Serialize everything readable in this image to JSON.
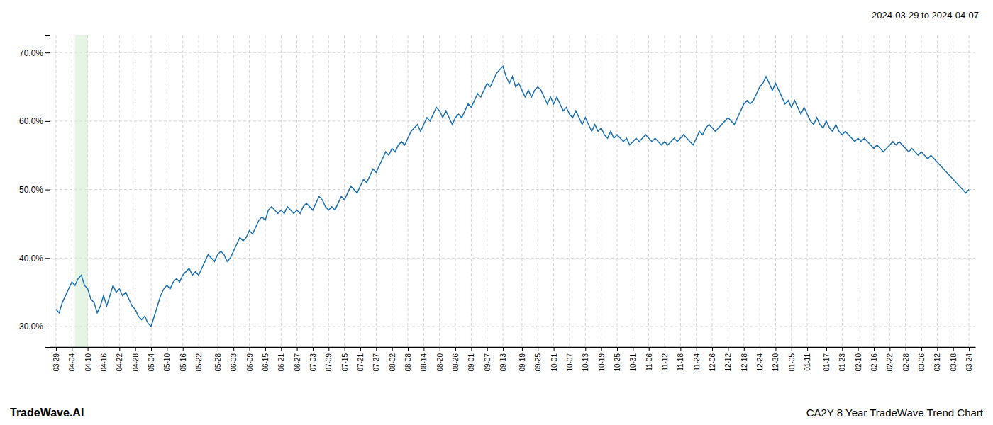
{
  "chart_data": {
    "type": "line",
    "title": "CA2Y 8 Year TradeWave Trend Chart",
    "subtitle": "2024-03-29 to 2024-04-07",
    "annotations": [
      "TradeWave.AI"
    ],
    "color": "#1a6faf",
    "grid": true,
    "highlight": {
      "start": 6,
      "end": 10,
      "color": "#d6ecd6"
    },
    "ylim": [
      27.0,
      72.5
    ],
    "yticks": [
      {
        "value": 30.0,
        "label": "30.0%"
      },
      {
        "value": 40.0,
        "label": "40.0%"
      },
      {
        "value": 50.0,
        "label": "50.0%"
      },
      {
        "value": 60.0,
        "label": "60.0%"
      },
      {
        "value": 70.0,
        "label": "70.0%"
      }
    ],
    "categories": [
      "03-29",
      null,
      null,
      null,
      null,
      "04-04",
      null,
      null,
      null,
      null,
      "04-10",
      null,
      null,
      null,
      null,
      "04-16",
      null,
      null,
      null,
      null,
      "04-22",
      null,
      null,
      null,
      null,
      "04-28",
      null,
      null,
      null,
      null,
      "05-04",
      null,
      null,
      null,
      null,
      "05-10",
      null,
      null,
      null,
      null,
      "05-16",
      null,
      null,
      null,
      null,
      "05-22",
      null,
      null,
      null,
      null,
      null,
      "05-28",
      null,
      null,
      null,
      null,
      "06-03",
      null,
      null,
      null,
      null,
      "06-09",
      null,
      null,
      null,
      null,
      "06-15",
      null,
      null,
      null,
      null,
      "06-21",
      null,
      null,
      null,
      null,
      "06-27",
      null,
      null,
      null,
      null,
      "07-03",
      null,
      null,
      null,
      null,
      "07-09",
      null,
      null,
      null,
      null,
      "07-15",
      null,
      null,
      null,
      null,
      "07-21",
      null,
      null,
      null,
      null,
      "07-27",
      null,
      null,
      null,
      null,
      "08-02",
      null,
      null,
      null,
      null,
      "08-08",
      null,
      null,
      null,
      null,
      "08-14",
      null,
      null,
      null,
      null,
      "08-20",
      null,
      null,
      null,
      null,
      "08-26",
      null,
      null,
      null,
      null,
      "09-01",
      null,
      null,
      null,
      null,
      "09-07",
      null,
      null,
      null,
      null,
      "09-13",
      null,
      null,
      null,
      null,
      null,
      "09-19",
      null,
      null,
      null,
      null,
      "09-25",
      null,
      null,
      null,
      null,
      "10-01",
      null,
      null,
      null,
      null,
      "10-07",
      null,
      null,
      null,
      null,
      "10-13",
      null,
      null,
      null,
      null,
      "10-19",
      null,
      null,
      null,
      null,
      "10-25",
      null,
      null,
      null,
      null,
      "10-31",
      null,
      null,
      null,
      null,
      "11-06",
      null,
      null,
      null,
      null,
      "11-12",
      null,
      null,
      null,
      null,
      "11-18",
      null,
      null,
      null,
      null,
      "11-24",
      null,
      null,
      null,
      null,
      "12-06",
      null,
      null,
      null,
      null,
      "12-12",
      null,
      null,
      null,
      null,
      "12-18",
      null,
      null,
      null,
      null,
      "12-24",
      null,
      null,
      null,
      null,
      "12-30",
      null,
      null,
      null,
      null,
      "01-05",
      null,
      null,
      null,
      null,
      "01-11",
      null,
      null,
      null,
      null,
      null,
      "01-17",
      null,
      null,
      null,
      null,
      "01-23",
      null,
      null,
      null,
      null,
      "02-10",
      null,
      null,
      null,
      null,
      "02-16",
      null,
      null,
      null,
      null,
      "02-22",
      null,
      null,
      null,
      null,
      "02-28",
      null,
      null,
      null,
      null,
      "03-06",
      null,
      null,
      null,
      null,
      "03-12",
      null,
      null,
      null,
      null,
      "03-18",
      null,
      null,
      null,
      null,
      "03-24"
    ],
    "values": [
      32.5,
      32.0,
      33.5,
      34.5,
      35.5,
      36.5,
      36.0,
      37.0,
      37.5,
      36.0,
      35.5,
      34.0,
      33.5,
      32.0,
      33.0,
      34.5,
      33.0,
      34.5,
      36.0,
      35.0,
      35.5,
      34.5,
      35.0,
      34.0,
      33.0,
      32.5,
      31.5,
      31.0,
      31.5,
      30.5,
      30.0,
      31.5,
      33.0,
      34.5,
      35.5,
      36.0,
      35.5,
      36.5,
      37.0,
      36.5,
      37.5,
      38.0,
      38.5,
      37.5,
      38.0,
      37.5,
      38.5,
      39.5,
      40.5,
      40.0,
      39.5,
      40.5,
      41.0,
      40.5,
      39.5,
      40.0,
      41.0,
      42.0,
      43.0,
      42.5,
      43.0,
      44.0,
      43.5,
      44.5,
      45.5,
      46.0,
      45.5,
      47.0,
      47.5,
      47.0,
      46.5,
      47.0,
      46.5,
      47.5,
      47.0,
      46.5,
      47.0,
      46.5,
      47.5,
      48.0,
      47.5,
      47.0,
      48.0,
      49.0,
      48.5,
      47.5,
      47.0,
      47.5,
      47.0,
      48.0,
      49.0,
      48.5,
      49.5,
      50.5,
      50.0,
      49.5,
      50.5,
      51.5,
      51.0,
      52.0,
      53.0,
      52.5,
      53.5,
      54.5,
      55.5,
      55.0,
      56.0,
      55.5,
      56.5,
      57.0,
      56.5,
      57.5,
      58.5,
      59.0,
      59.5,
      58.5,
      59.5,
      60.5,
      60.0,
      61.0,
      62.0,
      61.5,
      60.5,
      61.5,
      60.5,
      59.5,
      60.5,
      61.0,
      60.5,
      61.5,
      62.5,
      62.0,
      63.0,
      64.0,
      63.5,
      64.5,
      65.5,
      65.0,
      66.0,
      67.0,
      67.5,
      68.0,
      66.5,
      65.5,
      66.5,
      65.0,
      65.5,
      64.5,
      63.5,
      64.5,
      63.5,
      64.5,
      65.0,
      64.5,
      63.5,
      62.5,
      63.5,
      62.5,
      63.5,
      62.5,
      61.5,
      62.0,
      61.0,
      60.5,
      61.5,
      60.5,
      59.5,
      60.5,
      59.5,
      58.5,
      59.5,
      58.5,
      59.0,
      58.0,
      57.5,
      58.5,
      57.5,
      58.0,
      57.5,
      57.0,
      57.5,
      56.5,
      57.0,
      57.5,
      57.0,
      57.5,
      58.0,
      57.5,
      57.0,
      57.5,
      57.0,
      56.5,
      57.0,
      56.5,
      57.0,
      57.5,
      57.0,
      57.5,
      58.0,
      57.5,
      57.0,
      56.5,
      57.5,
      58.5,
      58.0,
      59.0,
      59.5,
      59.0,
      58.5,
      59.0,
      59.5,
      60.0,
      60.5,
      60.0,
      59.5,
      60.5,
      61.5,
      62.5,
      63.0,
      62.5,
      63.0,
      64.0,
      65.0,
      65.5,
      66.5,
      65.5,
      64.5,
      65.5,
      64.5,
      63.5,
      62.5,
      63.0,
      62.0,
      63.0,
      62.0,
      61.0,
      62.0,
      61.0,
      60.0,
      59.5,
      60.5,
      59.5,
      59.0,
      60.0,
      59.0,
      58.5,
      59.5,
      58.5,
      58.0,
      58.5,
      58.0,
      57.5,
      57.0,
      57.5,
      57.0,
      57.5,
      57.0,
      56.5,
      56.0,
      56.5,
      56.0,
      55.5,
      56.0,
      56.5,
      57.0,
      56.5,
      57.0,
      56.5,
      56.0,
      55.5,
      56.0,
      55.5,
      55.0,
      55.5,
      55.0,
      54.5,
      55.0,
      54.5,
      54.0,
      53.5,
      53.0,
      52.5,
      52.0,
      51.5,
      51.0,
      50.5,
      50.0,
      49.5,
      50.0
    ]
  }
}
